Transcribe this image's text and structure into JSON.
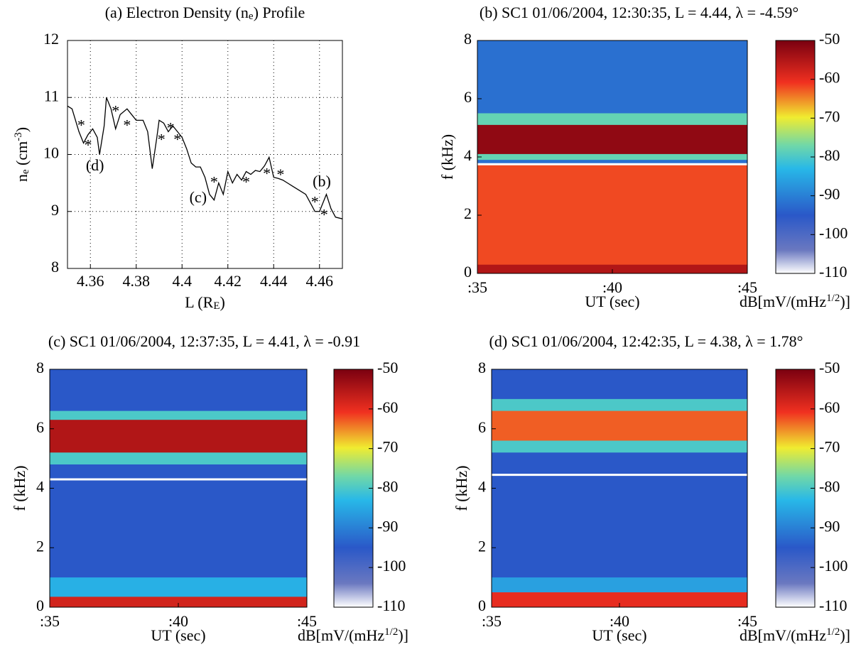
{
  "chart_data": [
    {
      "type": "line",
      "title": {
        "pre": "(a) Electron Density (n",
        "sub": "e",
        "post": ") Profile"
      },
      "xlabel": {
        "pre": "L (R",
        "sub": "E",
        "post": ")"
      },
      "ylabel": {
        "pre": "n",
        "sub": "e",
        "mid": " (cm",
        "sup": "-3",
        "post": ")"
      },
      "x": [
        4.35,
        4.352,
        4.355,
        4.357,
        4.359,
        4.361,
        4.363,
        4.364,
        4.366,
        4.367,
        4.369,
        4.371,
        4.373,
        4.376,
        4.378,
        4.38,
        4.383,
        4.385,
        4.387,
        4.389,
        4.39,
        4.392,
        4.394,
        4.396,
        4.398,
        4.4,
        4.402,
        4.404,
        4.406,
        4.408,
        4.41,
        4.412,
        4.414,
        4.416,
        4.418,
        4.42,
        4.422,
        4.424,
        4.426,
        4.428,
        4.43,
        4.432,
        4.434,
        4.436,
        4.438,
        4.44,
        4.442,
        4.444,
        4.446,
        4.448,
        4.45,
        4.452,
        4.454,
        4.456,
        4.458,
        4.46,
        4.462,
        4.463,
        4.465,
        4.467,
        4.47
      ],
      "values": [
        10.85,
        10.8,
        10.4,
        10.2,
        10.35,
        10.45,
        10.3,
        10.0,
        10.5,
        11.0,
        10.8,
        10.45,
        10.7,
        10.8,
        10.7,
        10.6,
        10.6,
        10.4,
        9.75,
        10.3,
        10.6,
        10.55,
        10.4,
        10.5,
        10.4,
        10.3,
        10.1,
        9.85,
        9.78,
        9.78,
        9.6,
        9.3,
        9.2,
        9.5,
        9.3,
        9.7,
        9.5,
        9.65,
        9.55,
        9.7,
        9.65,
        9.72,
        9.7,
        9.8,
        9.95,
        9.6,
        9.58,
        9.55,
        9.5,
        9.45,
        9.4,
        9.35,
        9.3,
        9.15,
        9.0,
        9.0,
        9.2,
        9.3,
        9.05,
        8.9,
        8.87
      ],
      "color": "#000000",
      "markers": {
        "x": [
          4.356,
          4.359,
          4.371,
          4.376,
          4.391,
          4.395,
          4.398,
          4.414,
          4.428,
          4.437,
          4.443,
          4.458,
          4.462
        ],
        "values": [
          10.55,
          10.2,
          10.8,
          10.55,
          10.3,
          10.5,
          10.3,
          9.55,
          9.55,
          9.7,
          9.68,
          9.2,
          8.98
        ],
        "color": "#ff2020"
      },
      "annotations": [
        "(d)",
        "(c)",
        "(b)"
      ],
      "xlim": [
        4.35,
        4.47
      ],
      "xticks": [
        4.36,
        4.38,
        4.4,
        4.42,
        4.44,
        4.46
      ],
      "ylim": [
        8,
        12
      ],
      "yticks": [
        8,
        9,
        10,
        11,
        12
      ],
      "grid": true
    },
    {
      "type": "spectrogram",
      "title": "(b) SC1 01/06/2004, 12:30:35, L = 4.44, λ = -4.59°",
      "xlabel": "UT (sec)",
      "ylabel": "f (kHz)",
      "colorbar_label": {
        "pre": "dB[mV/(mHz",
        "sup": "1/2",
        "post": ")]"
      },
      "xlim": [
        35,
        45
      ],
      "xticks": [
        {
          "value": 35,
          "label": ":35"
        },
        {
          "value": 40,
          "label": ":40"
        },
        {
          "value": 45,
          "label": ":45"
        }
      ],
      "ylim": [
        0,
        8
      ],
      "yticks": [
        0,
        2,
        4,
        6,
        8
      ],
      "clim": [
        -110,
        -50
      ],
      "cticks": [
        -50,
        -60,
        -70,
        -80,
        -90,
        -100,
        -110
      ],
      "background_db": -92,
      "bands": [
        {
          "f": [
            0,
            3.75
          ],
          "db": -62
        },
        {
          "f": [
            0,
            0.3
          ],
          "db": -55
        },
        {
          "f": [
            3.9,
            5.5
          ],
          "db": -78
        },
        {
          "f": [
            4.1,
            5.1
          ],
          "db": -52
        }
      ],
      "cutoff_f": 3.75,
      "cutoff_color": "#ffffff"
    },
    {
      "type": "spectrogram",
      "title": "(c) SC1 01/06/2004, 12:37:35, L = 4.41, λ = -0.91",
      "xlabel": "UT (sec)",
      "ylabel": "f (kHz)",
      "colorbar_label": {
        "pre": "dB[mV/(mHz",
        "sup": "1/2",
        "post": ")]"
      },
      "xlim": [
        35,
        45
      ],
      "xticks": [
        {
          "value": 35,
          "label": ":35"
        },
        {
          "value": 40,
          "label": ":40"
        },
        {
          "value": 45,
          "label": ":45"
        }
      ],
      "ylim": [
        0,
        8
      ],
      "yticks": [
        0,
        2,
        4,
        6,
        8
      ],
      "clim": [
        -110,
        -50
      ],
      "cticks": [
        -50,
        -60,
        -70,
        -80,
        -90,
        -100,
        -110
      ],
      "background_db": -95,
      "bands": [
        {
          "f": [
            0,
            1.0
          ],
          "db": -84
        },
        {
          "f": [
            0,
            0.35
          ],
          "db": -58
        },
        {
          "f": [
            4.8,
            6.6
          ],
          "db": -80
        },
        {
          "f": [
            5.2,
            6.3
          ],
          "db": -55
        }
      ],
      "cutoff_f": 4.3,
      "cutoff_color": "#ffffff"
    },
    {
      "type": "spectrogram",
      "title": "(d) SC1 01/06/2004, 12:42:35, L = 4.38, λ = 1.78°",
      "xlabel": "UT (sec)",
      "ylabel": "f (kHz)",
      "colorbar_label": {
        "pre": "dB[mV/(mHz",
        "sup": "1/2",
        "post": ")]"
      },
      "xlim": [
        35,
        45
      ],
      "xticks": [
        {
          "value": 35,
          "label": ":35"
        },
        {
          "value": 40,
          "label": ":40"
        },
        {
          "value": 45,
          "label": ":45"
        }
      ],
      "ylim": [
        0,
        8
      ],
      "yticks": [
        0,
        2,
        4,
        6,
        8
      ],
      "clim": [
        -110,
        -50
      ],
      "cticks": [
        -50,
        -60,
        -70,
        -80,
        -90,
        -100,
        -110
      ],
      "background_db": -95,
      "bands": [
        {
          "f": [
            0,
            1.0
          ],
          "db": -86
        },
        {
          "f": [
            0,
            0.5
          ],
          "db": -60
        },
        {
          "f": [
            5.2,
            7.0
          ],
          "db": -80
        },
        {
          "f": [
            5.6,
            6.6
          ],
          "db": -63
        }
      ],
      "cutoff_f": 4.45,
      "cutoff_color": "#ffffff"
    }
  ]
}
